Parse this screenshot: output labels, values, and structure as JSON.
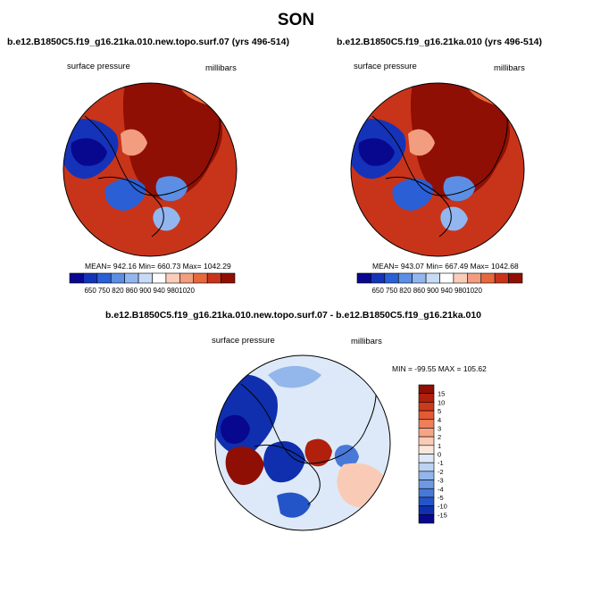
{
  "title": "SON",
  "chart_data": [
    {
      "type": "heatmap",
      "projection": "north-polar-stereographic",
      "title": "b.e12.B1850C5.f19_g16.21ka.010.new.topo.surf.07 (yrs 496-514)",
      "variable_label": "surface pressure",
      "units_label": "millibars",
      "stats": {
        "mean": 942.16,
        "min": 660.73,
        "max": 1042.29
      },
      "stats_text": "MEAN= 942.16   Min= 660.73   Max= 1042.29",
      "colorbar": {
        "orientation": "horizontal",
        "levels": [
          650,
          750,
          820,
          860,
          900,
          940,
          980,
          1020
        ],
        "labels": [
          "650",
          "750",
          "820",
          "860",
          "900",
          "940",
          "980",
          "1020"
        ],
        "colors": [
          "#08088f",
          "#1533b8",
          "#2a5fd6",
          "#5c8ee3",
          "#92b6ef",
          "#c8dbf6",
          "#ffffff",
          "#f9cdb9",
          "#f29d80",
          "#e8683e",
          "#c8341a",
          "#8f0f04"
        ]
      }
    },
    {
      "type": "heatmap",
      "projection": "north-polar-stereographic",
      "title": "b.e12.B1850C5.f19_g16.21ka.010 (yrs 496-514)",
      "variable_label": "surface pressure",
      "units_label": "millibars",
      "stats": {
        "mean": 943.07,
        "min": 667.49,
        "max": 1042.68
      },
      "stats_text": "MEAN= 943.07   Min= 667.49   Max= 1042.68",
      "colorbar": {
        "orientation": "horizontal",
        "levels": [
          650,
          750,
          820,
          860,
          900,
          940,
          980,
          1020
        ],
        "labels": [
          "650",
          "750",
          "820",
          "860",
          "900",
          "940",
          "980",
          "1020"
        ],
        "colors": [
          "#08088f",
          "#1533b8",
          "#2a5fd6",
          "#5c8ee3",
          "#92b6ef",
          "#c8dbf6",
          "#ffffff",
          "#f9cdb9",
          "#f29d80",
          "#e8683e",
          "#c8341a",
          "#8f0f04"
        ]
      }
    },
    {
      "type": "heatmap",
      "projection": "north-polar-stereographic",
      "title": "b.e12.B1850C5.f19_g16.21ka.010.new.topo.surf.07 - b.e12.B1850C5.f19_g16.21ka.010",
      "variable_label": "surface pressure",
      "units_label": "millibars",
      "stats": {
        "min": -99.55,
        "max": 105.62
      },
      "stats_text": "MIN = -99.55  MAX = 105.62",
      "colorbar": {
        "orientation": "vertical",
        "levels": [
          15,
          10,
          5,
          4,
          3,
          2,
          1,
          0,
          -1,
          -2,
          -3,
          -4,
          -5,
          -10,
          -15
        ],
        "labels": [
          "15",
          "10",
          "5",
          "4",
          "3",
          "2",
          "1",
          "0",
          "-1",
          "-2",
          "-3",
          "-4",
          "-5",
          "-10",
          "-15"
        ],
        "colors": [
          "#8f0f04",
          "#b0200c",
          "#cc3a1c",
          "#e35a33",
          "#ef7f58",
          "#f5a585",
          "#f9cbb6",
          "#fbe6dc",
          "#dde9f8",
          "#bcd3f2",
          "#93b6eb",
          "#6d98e2",
          "#4878d8",
          "#2455c8",
          "#0f2fae",
          "#08088f"
        ]
      }
    }
  ]
}
